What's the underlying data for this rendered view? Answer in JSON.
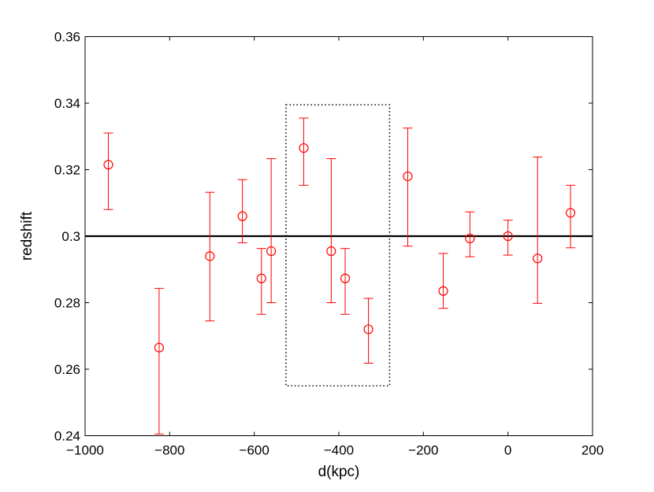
{
  "chart_data": {
    "type": "scatter",
    "title": "",
    "xlabel": "d(kpc)",
    "ylabel": "redshift",
    "xlim": [
      -1000,
      200
    ],
    "ylim": [
      0.24,
      0.36
    ],
    "xticks": [
      -1000,
      -800,
      -600,
      -400,
      -200,
      0,
      200
    ],
    "xtick_labels": [
      "−1000",
      "−800",
      "−600",
      "−400",
      "−200",
      "0",
      "200"
    ],
    "yticks": [
      0.24,
      0.26,
      0.28,
      0.3,
      0.32,
      0.34,
      0.36
    ],
    "ytick_labels": [
      "0.24",
      "0.26",
      "0.28",
      "0.3",
      "0.32",
      "0.34",
      "0.36"
    ],
    "grid": false,
    "marker_color": "#ff0000",
    "reference_line": {
      "y": 0.3,
      "color": "#000000",
      "style": "solid"
    },
    "highlight_box": {
      "x0": -525,
      "x1": -280,
      "y0": 0.255,
      "y1": 0.3395,
      "style": "dotted",
      "color": "#000000"
    },
    "series": [
      {
        "marker": "open-circle",
        "points": [
          {
            "x": -945,
            "y": 0.3215,
            "ylow": 0.308,
            "yhigh": 0.331
          },
          {
            "x": -825,
            "y": 0.2665,
            "ylow": 0.2405,
            "yhigh": 0.2843
          },
          {
            "x": -705,
            "y": 0.294,
            "ylow": 0.2745,
            "yhigh": 0.3132
          },
          {
            "x": -628,
            "y": 0.306,
            "ylow": 0.298,
            "yhigh": 0.317
          },
          {
            "x": -583,
            "y": 0.2873,
            "ylow": 0.2765,
            "yhigh": 0.2963
          },
          {
            "x": -560,
            "y": 0.2955,
            "ylow": 0.28,
            "yhigh": 0.3233
          },
          {
            "x": -483,
            "y": 0.3265,
            "ylow": 0.3153,
            "yhigh": 0.3355
          },
          {
            "x": -418,
            "y": 0.2955,
            "ylow": 0.28,
            "yhigh": 0.3233
          },
          {
            "x": -385,
            "y": 0.2873,
            "ylow": 0.2765,
            "yhigh": 0.2963
          },
          {
            "x": -330,
            "y": 0.272,
            "ylow": 0.2618,
            "yhigh": 0.2813
          },
          {
            "x": -237,
            "y": 0.318,
            "ylow": 0.297,
            "yhigh": 0.3325
          },
          {
            "x": -153,
            "y": 0.2835,
            "ylow": 0.2783,
            "yhigh": 0.2948
          },
          {
            "x": -90,
            "y": 0.2993,
            "ylow": 0.2938,
            "yhigh": 0.3073
          },
          {
            "x": 0,
            "y": 0.3,
            "ylow": 0.2943,
            "yhigh": 0.3048
          },
          {
            "x": 70,
            "y": 0.2933,
            "ylow": 0.2798,
            "yhigh": 0.3238
          },
          {
            "x": 148,
            "y": 0.307,
            "ylow": 0.2965,
            "yhigh": 0.3153
          }
        ]
      }
    ]
  }
}
